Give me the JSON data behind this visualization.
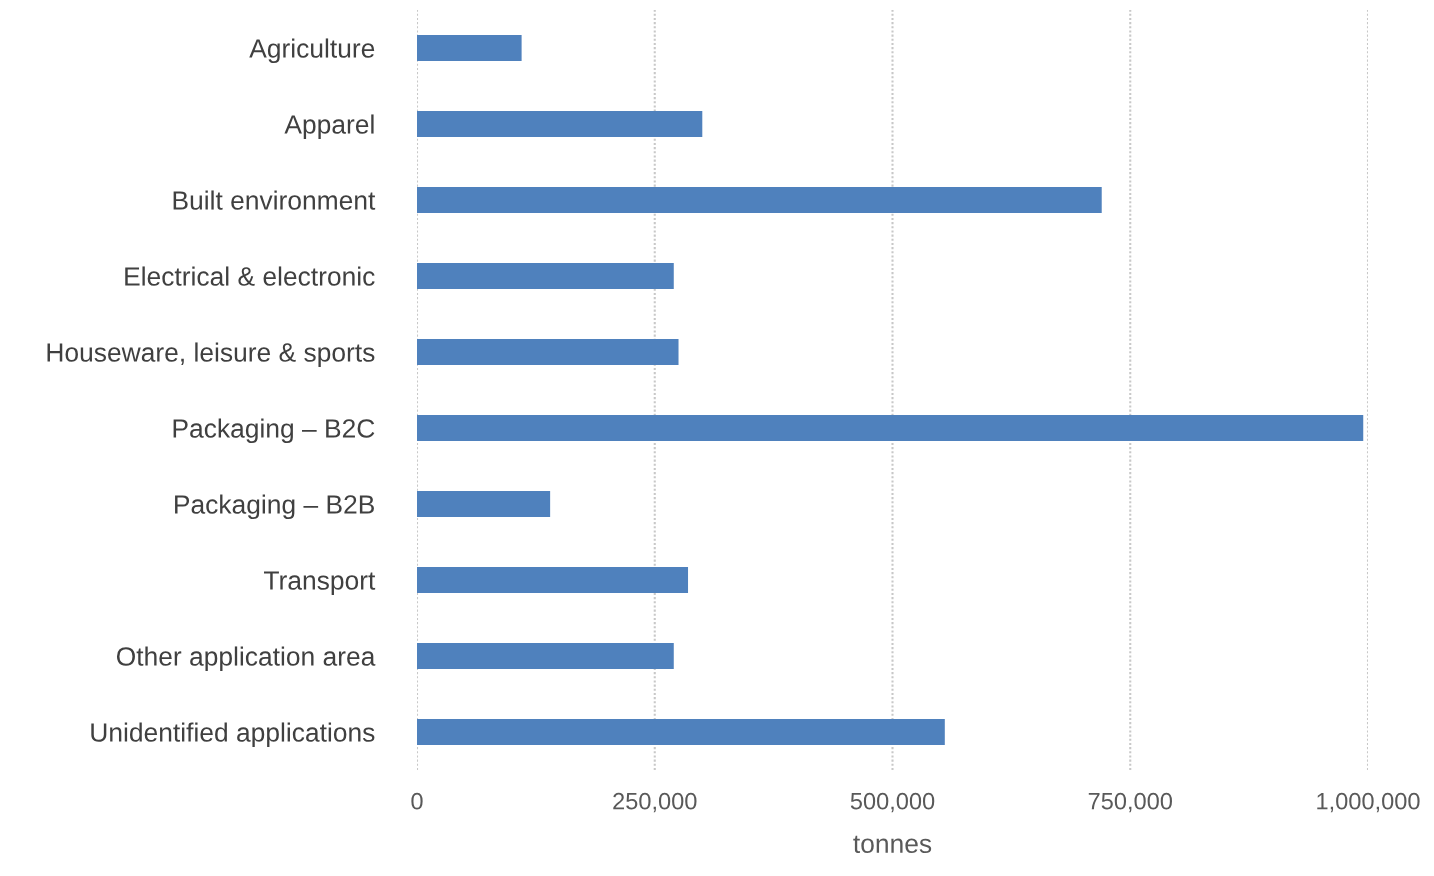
{
  "chart_data": {
    "type": "bar",
    "orientation": "horizontal",
    "xlabel": "tonnes",
    "categories": [
      "Agriculture",
      "Apparel",
      "Built environment",
      "Electrical & electronic",
      "Houseware, leisure & sports",
      "Packaging – B2C",
      "Packaging – B2B",
      "Transport",
      "Other application area",
      "Unidentified applications"
    ],
    "values": [
      110000,
      300000,
      720000,
      270000,
      275000,
      995000,
      140000,
      285000,
      270000,
      555000
    ],
    "color": "#4f81bd",
    "xlim": [
      0,
      1000000
    ],
    "xticks": [
      {
        "value": 0,
        "label": "0"
      },
      {
        "value": 250000,
        "label": "250,000"
      },
      {
        "value": 500000,
        "label": "500,000"
      },
      {
        "value": 750000,
        "label": "750,000"
      },
      {
        "value": 1000000,
        "label": "1,000,000"
      }
    ],
    "grid": "x",
    "legend": false
  }
}
